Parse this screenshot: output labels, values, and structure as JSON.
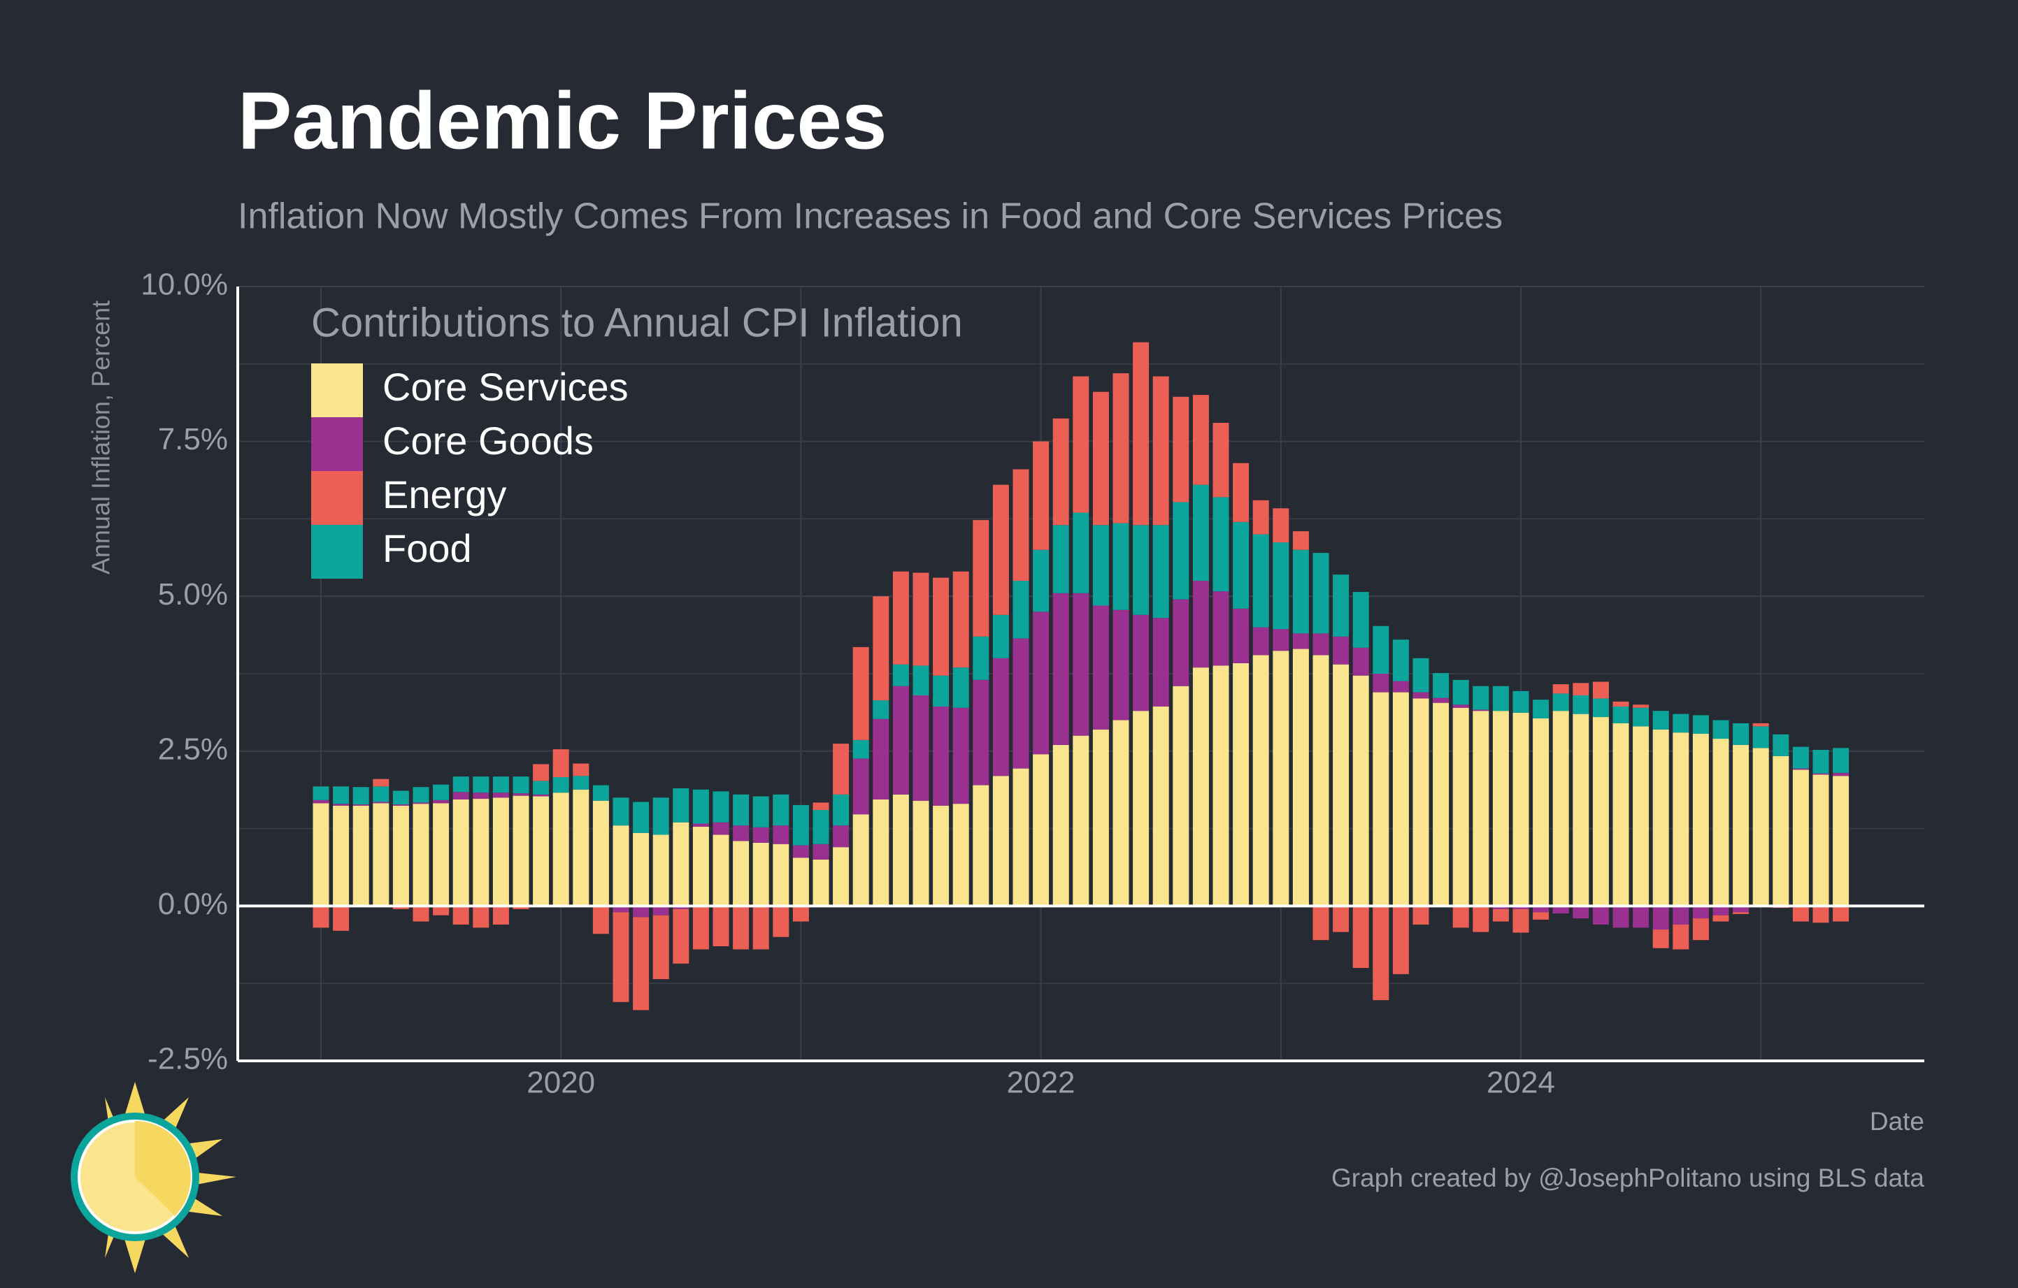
{
  "chart_data": {
    "type": "bar",
    "stacked": true,
    "title": "Pandemic Prices",
    "subtitle": "Inflation Now Mostly Comes From Increases in Food and Core Services Prices",
    "legend_title": "Contributions to Annual CPI Inflation",
    "ylabel": "Annual Inflation, Percent",
    "xlabel": "Date",
    "caption": "Graph created by @JosephPolitano using BLS data",
    "legend": "upper left",
    "grid": true,
    "categories": [
      null,
      null,
      null,
      null,
      null,
      null,
      null,
      null,
      null,
      null,
      null,
      null,
      "2020",
      null,
      null,
      null,
      null,
      null,
      null,
      null,
      null,
      null,
      null,
      null,
      null,
      null,
      null,
      null,
      null,
      null,
      null,
      null,
      null,
      null,
      null,
      null,
      "2022",
      null,
      null,
      null,
      null,
      null,
      null,
      null,
      null,
      null,
      null,
      null,
      null,
      null,
      null,
      null,
      null,
      null,
      null,
      null,
      null,
      null,
      null,
      null,
      "2024",
      null,
      null,
      null,
      null,
      null,
      null,
      null,
      null,
      null,
      null,
      null,
      null,
      null,
      null,
      null,
      null
    ],
    "ylim": [
      -2.5,
      10
    ],
    "yticks": [
      {
        "value": -2.5,
        "label": "-2.5%"
      },
      {
        "value": 0,
        "label": "0.0%"
      },
      {
        "value": 2.5,
        "label": "2.5%"
      },
      {
        "value": 5,
        "label": "5.0%"
      },
      {
        "value": 7.5,
        "label": "7.5%"
      },
      {
        "value": 10,
        "label": "10.0%"
      }
    ],
    "series": [
      {
        "name": "Core Services",
        "color": "#fbe48e",
        "values": [
          1.66,
          1.62,
          1.62,
          1.66,
          1.62,
          1.65,
          1.66,
          1.72,
          1.73,
          1.75,
          1.78,
          1.77,
          1.83,
          1.88,
          1.7,
          1.3,
          1.18,
          1.15,
          1.35,
          1.28,
          1.15,
          1.05,
          1.02,
          1.0,
          0.78,
          0.75,
          0.95,
          1.48,
          1.72,
          1.8,
          1.7,
          1.62,
          1.65,
          1.95,
          2.1,
          2.22,
          2.45,
          2.6,
          2.75,
          2.85,
          3.0,
          3.15,
          3.22,
          3.55,
          3.85,
          3.88,
          3.92,
          4.05,
          4.12,
          4.15,
          4.05,
          3.9,
          3.72,
          3.45,
          3.45,
          3.35,
          3.28,
          3.2,
          3.15,
          3.15,
          3.12,
          3.03,
          3.15,
          3.1,
          3.05,
          2.95,
          2.9,
          2.85,
          2.8,
          2.78,
          2.7,
          2.6,
          2.55,
          2.42,
          2.2,
          2.12,
          2.1
        ]
      },
      {
        "name": "Core Goods",
        "color": "#9a3191",
        "values": [
          0.05,
          0.03,
          0.02,
          0.02,
          0.02,
          0.02,
          0.05,
          0.12,
          0.1,
          0.08,
          0.04,
          0.03,
          0,
          0,
          0,
          -0.1,
          -0.18,
          -0.15,
          -0.05,
          0.05,
          0.2,
          0.25,
          0.25,
          0.3,
          0.2,
          0.25,
          0.35,
          0.9,
          1.3,
          1.75,
          1.7,
          1.6,
          1.55,
          1.7,
          1.9,
          2.1,
          2.3,
          2.45,
          2.3,
          2.0,
          1.78,
          1.55,
          1.43,
          1.4,
          1.4,
          1.2,
          0.88,
          0.45,
          0.35,
          0.25,
          0.35,
          0.45,
          0.45,
          0.3,
          0.18,
          0.1,
          0.08,
          0.05,
          0.02,
          -0.05,
          -0.05,
          -0.1,
          -0.12,
          -0.2,
          -0.3,
          -0.35,
          -0.35,
          -0.38,
          -0.3,
          -0.2,
          -0.15,
          -0.1,
          0,
          0,
          0.02,
          0.02,
          0.05
        ]
      },
      {
        "name": "Energy",
        "color": "#ec5f55",
        "values": [
          -0.35,
          -0.4,
          0,
          0.12,
          -0.05,
          -0.25,
          -0.15,
          -0.3,
          -0.35,
          -0.3,
          -0.05,
          0.27,
          0.45,
          0.2,
          -0.45,
          -1.45,
          -1.5,
          -1.03,
          -0.88,
          -0.7,
          -0.65,
          -0.7,
          -0.7,
          -0.5,
          -0.25,
          0.12,
          0.82,
          1.5,
          1.68,
          1.5,
          1.5,
          1.58,
          1.55,
          1.88,
          2.1,
          1.8,
          1.75,
          1.72,
          2.2,
          2.15,
          2.42,
          2.95,
          2.4,
          1.7,
          1.45,
          1.2,
          0.95,
          0.55,
          0.55,
          0.3,
          -0.55,
          -0.42,
          -1.0,
          -1.52,
          -1.1,
          -0.3,
          0,
          -0.35,
          -0.42,
          -0.2,
          -0.38,
          -0.12,
          0.15,
          0.2,
          0.27,
          0.08,
          0.05,
          -0.3,
          -0.4,
          -0.35,
          -0.1,
          -0.03,
          0.05,
          -0.03,
          -0.25,
          -0.27,
          -0.25
        ]
      },
      {
        "name": "Food",
        "color": "#0ca59c",
        "values": [
          0.22,
          0.28,
          0.28,
          0.25,
          0.22,
          0.25,
          0.25,
          0.25,
          0.26,
          0.26,
          0.27,
          0.22,
          0.25,
          0.22,
          0.25,
          0.45,
          0.5,
          0.6,
          0.55,
          0.55,
          0.5,
          0.5,
          0.5,
          0.5,
          0.65,
          0.55,
          0.5,
          0.3,
          0.3,
          0.35,
          0.48,
          0.5,
          0.65,
          0.7,
          0.7,
          0.93,
          1.0,
          1.1,
          1.3,
          1.3,
          1.4,
          1.45,
          1.5,
          1.57,
          1.55,
          1.52,
          1.4,
          1.5,
          1.4,
          1.35,
          1.3,
          1.0,
          0.9,
          0.77,
          0.67,
          0.55,
          0.4,
          0.4,
          0.38,
          0.4,
          0.35,
          0.3,
          0.28,
          0.3,
          0.3,
          0.27,
          0.3,
          0.3,
          0.3,
          0.3,
          0.3,
          0.35,
          0.35,
          0.35,
          0.35,
          0.38,
          0.4
        ]
      }
    ]
  }
}
